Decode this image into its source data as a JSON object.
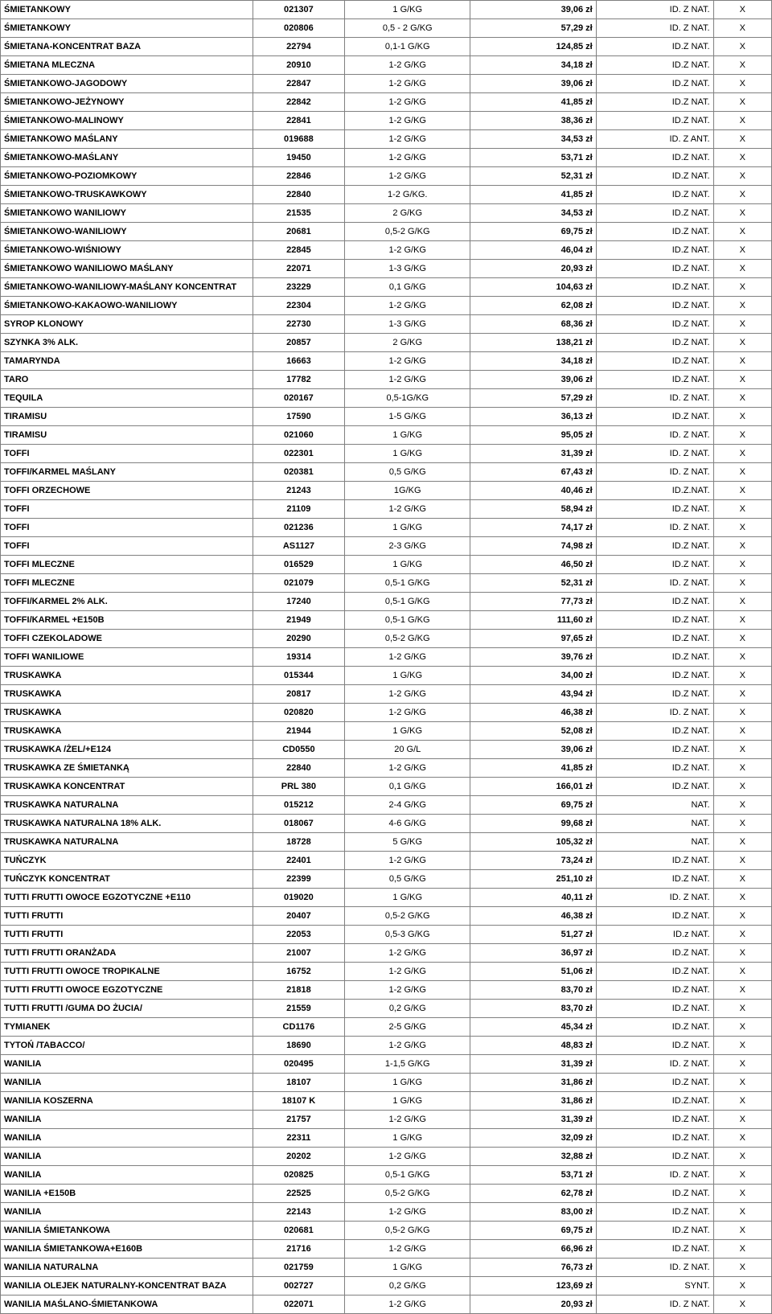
{
  "table": {
    "col_classes": [
      "c0",
      "c1",
      "c2",
      "c3",
      "c4",
      "c5"
    ],
    "border_color": "#808080",
    "background_color": "#ffffff",
    "font_size_pt": 8,
    "rows": [
      [
        "ŚMIETANKOWY",
        "021307",
        "1 G/KG",
        "39,06 zł",
        "ID. Z NAT.",
        "X"
      ],
      [
        "ŚMIETANKOWY",
        "020806",
        "0,5 - 2 G/KG",
        "57,29 zł",
        "ID. Z NAT.",
        "X"
      ],
      [
        "ŚMIETANA-KONCENTRAT BAZA",
        "22794",
        "0,1-1 G/KG",
        "124,85 zł",
        "ID.Z NAT.",
        "X"
      ],
      [
        "ŚMIETANA MLECZNA",
        "20910",
        "1-2 G/KG",
        "34,18 zł",
        "ID.Z NAT.",
        "X"
      ],
      [
        "ŚMIETANKOWO-JAGODOWY",
        "22847",
        "1-2 G/KG",
        "39,06 zł",
        "ID.Z NAT.",
        "X"
      ],
      [
        "ŚMIETANKOWO-JEŻYNOWY",
        "22842",
        "1-2 G/KG",
        "41,85 zł",
        "ID.Z NAT.",
        "X"
      ],
      [
        "ŚMIETANKOWO-MALINOWY",
        "22841",
        "1-2 G/KG",
        "38,36 zł",
        "ID.Z NAT.",
        "X"
      ],
      [
        "ŚMIETANKOWO MAŚLANY",
        "019688",
        "1-2 G/KG",
        "34,53 zł",
        "ID. Z ANT.",
        "X"
      ],
      [
        "ŚMIETANKOWO-MAŚLANY",
        "19450",
        "1-2 G/KG",
        "53,71 zł",
        "ID.Z NAT.",
        "X"
      ],
      [
        "ŚMIETANKOWO-POZIOMKOWY",
        "22846",
        "1-2 G/KG",
        "52,31 zł",
        "ID.Z NAT.",
        "X"
      ],
      [
        "ŚMIETANKOWO-TRUSKAWKOWY",
        "22840",
        "1-2 G/KG.",
        "41,85 zł",
        "ID.Z NAT.",
        "X"
      ],
      [
        "ŚMIETANKOWO WANILIOWY",
        "21535",
        "2 G/KG",
        "34,53 zł",
        "ID.Z NAT.",
        "X"
      ],
      [
        "ŚMIETANKOWO-WANILIOWY",
        "20681",
        "0,5-2 G/KG",
        "69,75 zł",
        "ID.Z NAT.",
        "X"
      ],
      [
        "ŚMIETANKOWO-WIŚNIOWY",
        "22845",
        "1-2 G/KG",
        "46,04 zł",
        "ID.Z NAT.",
        "X"
      ],
      [
        "ŚMIETANKOWO WANILIOWO MAŚLANY",
        "22071",
        "1-3 G/KG",
        "20,93 zł",
        "ID.Z NAT.",
        "X"
      ],
      [
        "ŚMIETANKOWO-WANILIOWY-MAŚLANY KONCENTRAT",
        "23229",
        "0,1 G/KG",
        "104,63 zł",
        "ID.Z NAT.",
        "X"
      ],
      [
        "ŚMIETANKOWO-KAKAOWO-WANILIOWY",
        "22304",
        "1-2 G/KG",
        "62,08 zł",
        "ID.Z NAT.",
        "X"
      ],
      [
        "SYROP KLONOWY",
        "22730",
        "1-3 G/KG",
        "68,36 zł",
        "ID.Z NAT.",
        "X"
      ],
      [
        "SZYNKA 3% ALK.",
        "20857",
        "2 G/KG",
        "138,21 zł",
        "ID.Z NAT.",
        "X"
      ],
      [
        "TAMARYNDA",
        "16663",
        "1-2 G/KG",
        "34,18 zł",
        "ID.Z NAT.",
        "X"
      ],
      [
        "TARO",
        "17782",
        "1-2 G/KG",
        "39,06 zł",
        "ID.Z NAT.",
        "X"
      ],
      [
        "TEQUILA",
        "020167",
        "0,5-1G/KG",
        "57,29 zł",
        "ID. Z NAT.",
        "X"
      ],
      [
        "TIRAMISU",
        "17590",
        "1-5 G/KG",
        "36,13 zł",
        "ID.Z NAT.",
        "X"
      ],
      [
        "TIRAMISU",
        "021060",
        "1 G/KG",
        "95,05 zł",
        "ID. Z NAT.",
        "X"
      ],
      [
        "TOFFI",
        "022301",
        "1 G/KG",
        "31,39 zł",
        "ID. Z NAT.",
        "X"
      ],
      [
        "TOFFI/KARMEL MAŚLANY",
        "020381",
        "0,5 G/KG",
        "67,43 zł",
        "ID. Z NAT.",
        "X"
      ],
      [
        "TOFFI ORZECHOWE",
        "21243",
        "1G/KG",
        "40,46 zł",
        "ID.Z.NAT.",
        "X"
      ],
      [
        "TOFFI",
        "21109",
        "1-2 G/KG",
        "58,94 zł",
        "ID.Z NAT.",
        "X"
      ],
      [
        "TOFFI",
        "021236",
        "1 G/KG",
        "74,17 zł",
        "ID. Z NAT.",
        "X"
      ],
      [
        "TOFFI",
        "AS1127",
        "2-3 G/KG",
        "74,98 zł",
        "ID.Z NAT.",
        "X"
      ],
      [
        "TOFFI MLECZNE",
        "016529",
        "1 G/KG",
        "46,50 zł",
        "ID.Z NAT.",
        "X"
      ],
      [
        "TOFFI MLECZNE",
        "021079",
        "0,5-1 G/KG",
        "52,31 zł",
        "ID. Z NAT.",
        "X"
      ],
      [
        "TOFFI/KARMEL 2% ALK.",
        "17240",
        "0,5-1 G/KG",
        "77,73 zł",
        "ID.Z NAT.",
        "X"
      ],
      [
        "TOFFI/KARMEL +E150B",
        "21949",
        "0,5-1 G/KG",
        "111,60 zł",
        "ID.Z NAT.",
        "X"
      ],
      [
        "TOFFI CZEKOLADOWE",
        "20290",
        "0,5-2 G/KG",
        "97,65 zł",
        "ID.Z NAT.",
        "X"
      ],
      [
        "TOFFI WANILIOWE",
        "19314",
        "1-2 G/KG",
        "39,76 zł",
        "ID.Z NAT.",
        "X"
      ],
      [
        "TRUSKAWKA",
        "015344",
        "1 G/KG",
        "34,00 zł",
        "ID.Z NAT.",
        "X"
      ],
      [
        "TRUSKAWKA",
        "20817",
        "1-2 G/KG",
        "43,94 zł",
        "ID.Z NAT.",
        "X"
      ],
      [
        "TRUSKAWKA",
        "020820",
        "1-2 G/KG",
        "46,38 zł",
        "ID. Z NAT.",
        "X"
      ],
      [
        "TRUSKAWKA",
        "21944",
        "1 G/KG",
        "52,08 zł",
        "ID.Z NAT.",
        "X"
      ],
      [
        "TRUSKAWKA /ŻEL/+E124",
        "CD0550",
        "20 G/L",
        "39,06 zł",
        "ID.Z NAT.",
        "X"
      ],
      [
        "TRUSKAWKA ZE ŚMIETANKĄ",
        "22840",
        "1-2 G/KG",
        "41,85 zł",
        "ID.Z NAT.",
        "X"
      ],
      [
        "TRUSKAWKA KONCENTRAT",
        "PRL 380",
        "0,1 G/KG",
        "166,01 zł",
        "ID.Z NAT.",
        "X"
      ],
      [
        "TRUSKAWKA NATURALNA",
        "015212",
        "2-4 G/KG",
        "69,75 zł",
        "NAT.",
        "X"
      ],
      [
        "TRUSKAWKA NATURALNA 18% ALK.",
        "018067",
        "4-6 G/KG",
        "99,68 zł",
        "NAT.",
        "X"
      ],
      [
        "TRUSKAWKA NATURALNA",
        "18728",
        "5 G/KG",
        "105,32 zł",
        "NAT.",
        "X"
      ],
      [
        "TUŃCZYK",
        "22401",
        "1-2 G/KG",
        "73,24 zł",
        "ID.Z NAT.",
        "X"
      ],
      [
        "TUŃCZYK KONCENTRAT",
        "22399",
        "0,5 G/KG",
        "251,10 zł",
        "ID.Z NAT.",
        "X"
      ],
      [
        "TUTTI FRUTTI  OWOCE EGZOTYCZNE +E110",
        "019020",
        "1 G/KG",
        "40,11 zł",
        "ID. Z NAT.",
        "X"
      ],
      [
        "TUTTI FRUTTI",
        "20407",
        "0,5-2 G/KG",
        "46,38 zł",
        "ID.Z NAT.",
        "X"
      ],
      [
        "TUTTI FRUTTI",
        "22053",
        "0,5-3 G/KG",
        "51,27 zł",
        "ID.z NAT.",
        "X"
      ],
      [
        "TUTTI FRUTTI ORANŻADA",
        "21007",
        "1-2 G/KG",
        "36,97 zł",
        "ID.Z NAT.",
        "X"
      ],
      [
        "TUTTI FRUTTI  OWOCE TROPIKALNE",
        "16752",
        "1-2 G/KG",
        "51,06 zł",
        "ID.Z NAT.",
        "X"
      ],
      [
        "TUTTI FRUTTI OWOCE EGZOTYCZNE",
        "21818",
        "1-2 G/KG",
        "83,70 zł",
        "ID.Z NAT.",
        "X"
      ],
      [
        "TUTTI FRUTTI /GUMA DO ŻUCIA/",
        "21559",
        "0,2 G/KG",
        "83,70 zł",
        "ID.Z NAT.",
        "X"
      ],
      [
        "TYMIANEK",
        "CD1176",
        "2-5 G/KG",
        "45,34 zł",
        "ID.Z NAT.",
        "X"
      ],
      [
        "TYTOŃ /TABACCO/",
        "18690",
        "1-2 G/KG",
        "48,83 zł",
        "ID.Z NAT.",
        "X"
      ],
      [
        "WANILIA",
        "020495",
        "1-1,5 G/KG",
        "31,39 zł",
        "ID. Z NAT.",
        "X"
      ],
      [
        "WANILIA",
        "18107",
        "1 G/KG",
        "31,86 zł",
        "ID.Z NAT.",
        "X"
      ],
      [
        "WANILIA KOSZERNA",
        "18107 K",
        "1 G/KG",
        "31,86 zł",
        "ID.Z.NAT.",
        "X"
      ],
      [
        "WANILIA",
        "21757",
        "1-2 G/KG",
        "31,39 zł",
        "ID.Z NAT.",
        "X"
      ],
      [
        "WANILIA",
        "22311",
        "1 G/KG",
        "32,09 zł",
        "ID.Z NAT.",
        "X"
      ],
      [
        "WANILIA",
        "20202",
        "1-2 G/KG",
        "32,88 zł",
        "ID.Z NAT.",
        "X"
      ],
      [
        "WANILIA",
        "020825",
        "0,5-1 G/KG",
        "53,71 zł",
        "ID. Z NAT.",
        "X"
      ],
      [
        "WANILIA +E150B",
        "22525",
        "0,5-2 G/KG",
        "62,78 zł",
        "ID.Z NAT.",
        "X"
      ],
      [
        "WANILIA",
        "22143",
        "1-2 G/KG",
        "83,00 zł",
        "ID.Z NAT.",
        "X"
      ],
      [
        "WANILIA ŚMIETANKOWA",
        "020681",
        "0,5-2 G/KG",
        "69,75 zł",
        "ID.Z NAT.",
        "X"
      ],
      [
        "WANILIA ŚMIETANKOWA+E160B",
        "21716",
        "1-2 G/KG",
        "66,96 zł",
        "ID.Z NAT.",
        "X"
      ],
      [
        "WANILIA NATURALNA",
        "021759",
        "1 G/KG",
        "76,73 zł",
        "ID. Z NAT.",
        "X"
      ],
      [
        "WANILIA OLEJEK NATURALNY-KONCENTRAT BAZA",
        "002727",
        "0,2 G/KG",
        "123,69 zł",
        "SYNT.",
        "X"
      ],
      [
        "WANILIA MAŚLANO-ŚMIETANKOWA",
        "022071",
        "1-2 G/KG",
        "20,93 zł",
        "ID. Z NAT.",
        "X"
      ]
    ]
  }
}
